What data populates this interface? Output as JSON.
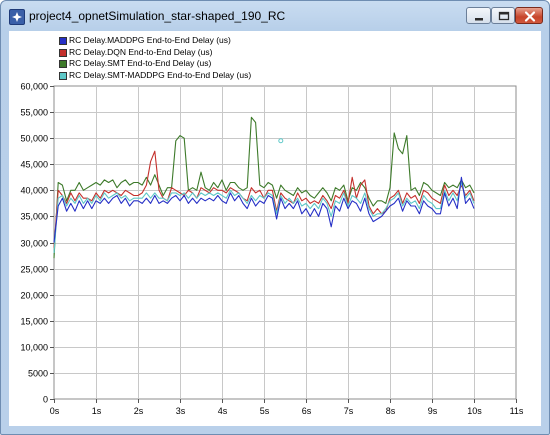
{
  "window": {
    "title": "project4_opnetSimulation_star-shaped_190_RC",
    "app_icon": "opnet-app-icon",
    "controls": [
      "minimize-icon",
      "maximize-icon",
      "close-icon"
    ]
  },
  "chart_data": {
    "type": "line",
    "title": "",
    "xlabel": "",
    "ylabel": "",
    "xlim": [
      0,
      11
    ],
    "ylim": [
      0,
      60000
    ],
    "x_ticks": [
      0,
      1,
      2,
      3,
      4,
      5,
      6,
      7,
      8,
      9,
      10,
      11
    ],
    "x_tick_labels": [
      "0s",
      "1s",
      "2s",
      "3s",
      "4s",
      "5s",
      "6s",
      "7s",
      "8s",
      "9s",
      "10s",
      "11s"
    ],
    "y_ticks": [
      0,
      5000,
      10000,
      15000,
      20000,
      25000,
      30000,
      35000,
      40000,
      45000,
      50000,
      55000,
      60000
    ],
    "y_tick_labels": [
      "0",
      "5000",
      "10,000",
      "15,000",
      "20,000",
      "25,000",
      "30,000",
      "35,000",
      "40,000",
      "45,000",
      "50,000",
      "55,000",
      "60,000"
    ],
    "grid": true,
    "legend_position": "top-left",
    "x": [
      0,
      0.1,
      0.2,
      0.3,
      0.4,
      0.5,
      0.6,
      0.7,
      0.8,
      0.9,
      1,
      1.1,
      1.2,
      1.3,
      1.4,
      1.5,
      1.6,
      1.7,
      1.8,
      1.9,
      2,
      2.1,
      2.2,
      2.3,
      2.4,
      2.5,
      2.6,
      2.7,
      2.8,
      2.9,
      3,
      3.1,
      3.2,
      3.3,
      3.4,
      3.5,
      3.6,
      3.7,
      3.8,
      3.9,
      4,
      4.1,
      4.2,
      4.3,
      4.4,
      4.5,
      4.6,
      4.7,
      4.8,
      4.9,
      5,
      5.1,
      5.2,
      5.3,
      5.4,
      5.5,
      5.6,
      5.7,
      5.8,
      5.9,
      6,
      6.1,
      6.2,
      6.3,
      6.4,
      6.5,
      6.6,
      6.7,
      6.8,
      6.9,
      7,
      7.1,
      7.2,
      7.3,
      7.4,
      7.5,
      7.6,
      7.7,
      7.8,
      7.9,
      8,
      8.1,
      8.2,
      8.3,
      8.4,
      8.5,
      8.6,
      8.7,
      8.8,
      8.9,
      9,
      9.1,
      9.2,
      9.3,
      9.4,
      9.5,
      9.6,
      9.7,
      9.8,
      9.9,
      10
    ],
    "series": [
      {
        "name": "RC Delay.MADDPG End-to-End Delay (us)",
        "color": "#2630c6",
        "values": [
          30000,
          37000,
          38500,
          36000,
          37500,
          36000,
          38000,
          36500,
          38000,
          36500,
          38000,
          37500,
          38500,
          37500,
          38500,
          39000,
          37500,
          38500,
          37000,
          38000,
          38000,
          37500,
          38500,
          37500,
          39000,
          37500,
          38000,
          37500,
          38500,
          39000,
          38000,
          39000,
          37500,
          38500,
          37500,
          38500,
          38000,
          38500,
          38000,
          39000,
          38000,
          37500,
          39500,
          38000,
          39000,
          37500,
          36500,
          38500,
          37000,
          38000,
          37500,
          39000,
          38500,
          34500,
          38500,
          36500,
          37500,
          36500,
          38000,
          35500,
          36500,
          35000,
          36500,
          35000,
          37500,
          36500,
          33000,
          37000,
          36000,
          38500,
          36500,
          38000,
          37500,
          36000,
          38500,
          35500,
          34000,
          34500,
          35000,
          36000,
          37000,
          37500,
          38500,
          36000,
          38000,
          37000,
          37000,
          35500,
          38000,
          37000,
          36500,
          35500,
          35500,
          39500,
          37000,
          38500,
          36500,
          42500,
          37500,
          38500,
          36500
        ]
      },
      {
        "name": "RC Delay.DQN End-to-End Delay (us)",
        "color": "#c4302c",
        "values": [
          29000,
          40000,
          39000,
          37500,
          39500,
          38000,
          39500,
          38500,
          38500,
          38000,
          39500,
          38500,
          40000,
          39500,
          40000,
          39500,
          39000,
          40000,
          39500,
          39000,
          39000,
          39500,
          41000,
          45500,
          47500,
          40000,
          38500,
          38000,
          40500,
          40000,
          39500,
          39000,
          40000,
          39500,
          38500,
          40500,
          40000,
          39500,
          40500,
          40000,
          40000,
          39500,
          40500,
          40000,
          39500,
          38500,
          38000,
          40500,
          39500,
          40000,
          38500,
          40000,
          40000,
          36000,
          39500,
          38500,
          38000,
          37500,
          39500,
          38000,
          38500,
          37500,
          38000,
          37500,
          39000,
          38000,
          36500,
          39000,
          38500,
          40000,
          37500,
          42500,
          38500,
          41000,
          42000,
          37000,
          35500,
          36500,
          35500,
          36000,
          38500,
          39000,
          40000,
          37500,
          39500,
          38500,
          39000,
          37500,
          40000,
          39500,
          38500,
          38000,
          37500,
          41000,
          39000,
          40000,
          39000,
          41000,
          39000,
          40000,
          38000
        ]
      },
      {
        "name": "RC Delay.SMT End-to-End Delay (us)",
        "color": "#3d7a2a",
        "values": [
          27000,
          41500,
          41000,
          38000,
          40000,
          40000,
          41500,
          40000,
          40500,
          41000,
          41500,
          41000,
          42000,
          41500,
          42000,
          40500,
          41500,
          42000,
          41000,
          41500,
          41500,
          41000,
          42500,
          41000,
          43000,
          41000,
          39000,
          40500,
          40500,
          49500,
          50500,
          50000,
          40000,
          40500,
          40000,
          43500,
          40500,
          40000,
          41500,
          40500,
          42000,
          40000,
          41500,
          41500,
          40500,
          40000,
          40500,
          54000,
          53000,
          41000,
          40500,
          41500,
          41000,
          38500,
          41000,
          40000,
          39500,
          39000,
          40500,
          39500,
          40000,
          39000,
          38500,
          39500,
          40500,
          39500,
          38000,
          40500,
          40000,
          41000,
          38000,
          40500,
          40000,
          41500,
          40500,
          38500,
          37000,
          38000,
          38000,
          37500,
          40500,
          51000,
          48000,
          47000,
          50500,
          40000,
          40500,
          39000,
          41500,
          41000,
          40000,
          39500,
          39000,
          41500,
          40500,
          41000,
          40500,
          42000,
          40500,
          41000,
          39500
        ]
      },
      {
        "name": "RC Delay.SMT-MADDPG End-to-End Delay (us)",
        "color": "#5ec8c8",
        "values": [
          28000,
          38500,
          39000,
          37000,
          38500,
          37500,
          39000,
          37500,
          38500,
          37500,
          39000,
          38000,
          39500,
          38500,
          39000,
          39500,
          38500,
          39000,
          38000,
          38500,
          38500,
          38500,
          39500,
          38500,
          39500,
          38500,
          38500,
          38000,
          39500,
          39500,
          39000,
          39500,
          38500,
          39500,
          38500,
          39500,
          39000,
          39500,
          39000,
          39500,
          39000,
          38500,
          40000,
          39000,
          39500,
          38500,
          37500,
          39000,
          38000,
          39000,
          38500,
          39500,
          39000,
          35500,
          39000,
          37500,
          38500,
          37500,
          38500,
          37000,
          37500,
          36500,
          37500,
          36500,
          38500,
          37500,
          35000,
          38000,
          37500,
          39500,
          37000,
          39000,
          38500,
          37500,
          39500,
          36500,
          35000,
          35500,
          35500,
          36500,
          38000,
          38500,
          39500,
          37000,
          38500,
          37500,
          38000,
          36500,
          39000,
          38000,
          37500,
          36500,
          36500,
          40000,
          38000,
          39500,
          38000,
          41500,
          38500,
          39500,
          37500
        ]
      }
    ],
    "annotations": [
      {
        "x": 5.4,
        "y": 49500,
        "color": "#5ec8c8",
        "marker": "circle"
      }
    ]
  }
}
